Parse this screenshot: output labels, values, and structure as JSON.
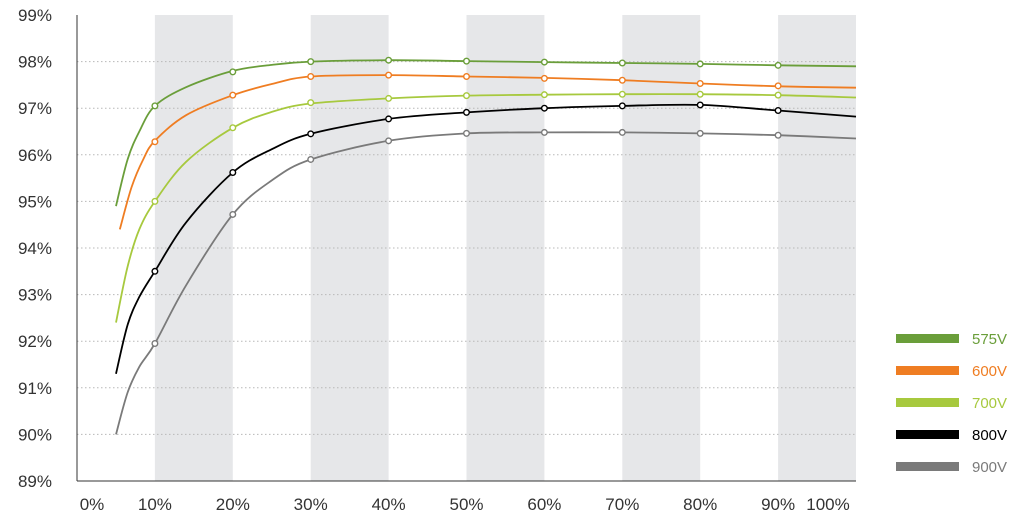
{
  "chart_data": {
    "type": "line",
    "title": "",
    "xlabel": "",
    "ylabel": "",
    "xlim": [
      0,
      100
    ],
    "ylim": [
      89,
      99
    ],
    "x_ticks": [
      "0%",
      "10%",
      "20%",
      "30%",
      "40%",
      "50%",
      "60%",
      "70%",
      "80%",
      "90%",
      "100%"
    ],
    "y_ticks": [
      "89%",
      "90%",
      "91%",
      "92%",
      "93%",
      "94%",
      "95%",
      "96%",
      "97%",
      "98%",
      "99%"
    ],
    "grid": "horizontal dotted lines with alternating shaded vertical bands",
    "legend_position": "bottom-right",
    "series": [
      {
        "name": "575V",
        "color": "#6a9e3a",
        "curve": [
          [
            5,
            94.9
          ],
          [
            6.5,
            95.9
          ],
          [
            8,
            96.5
          ],
          [
            10,
            97.05
          ],
          [
            14,
            97.45
          ],
          [
            20,
            97.8
          ],
          [
            25,
            97.93
          ],
          [
            30,
            98.0
          ],
          [
            40,
            98.03
          ],
          [
            50,
            98.01
          ],
          [
            60,
            97.99
          ],
          [
            70,
            97.97
          ],
          [
            80,
            97.95
          ],
          [
            90,
            97.92
          ],
          [
            100,
            97.9
          ]
        ],
        "markers": [
          [
            10,
            97.05
          ],
          [
            20,
            97.78
          ],
          [
            30,
            98.0
          ],
          [
            40,
            98.03
          ],
          [
            50,
            98.01
          ],
          [
            60,
            97.99
          ],
          [
            70,
            97.97
          ],
          [
            80,
            97.95
          ],
          [
            90,
            97.92
          ]
        ]
      },
      {
        "name": "600V",
        "color": "#ef7d22",
        "curve": [
          [
            5.5,
            94.4
          ],
          [
            7,
            95.3
          ],
          [
            8.5,
            95.9
          ],
          [
            10,
            96.3
          ],
          [
            14,
            96.85
          ],
          [
            20,
            97.28
          ],
          [
            25,
            97.52
          ],
          [
            30,
            97.68
          ],
          [
            40,
            97.71
          ],
          [
            50,
            97.68
          ],
          [
            60,
            97.65
          ],
          [
            70,
            97.6
          ],
          [
            80,
            97.53
          ],
          [
            90,
            97.47
          ],
          [
            100,
            97.44
          ]
        ],
        "markers": [
          [
            10,
            96.28
          ],
          [
            20,
            97.28
          ],
          [
            30,
            97.68
          ],
          [
            40,
            97.71
          ],
          [
            50,
            97.68
          ],
          [
            60,
            97.64
          ],
          [
            70,
            97.6
          ],
          [
            80,
            97.53
          ],
          [
            90,
            97.48
          ]
        ]
      },
      {
        "name": "700V",
        "color": "#a7c93e",
        "curve": [
          [
            5,
            92.4
          ],
          [
            6.5,
            93.6
          ],
          [
            8,
            94.4
          ],
          [
            10,
            95.0
          ],
          [
            14,
            95.85
          ],
          [
            20,
            96.58
          ],
          [
            25,
            96.92
          ],
          [
            30,
            97.1
          ],
          [
            40,
            97.21
          ],
          [
            50,
            97.27
          ],
          [
            60,
            97.29
          ],
          [
            70,
            97.3
          ],
          [
            80,
            97.3
          ],
          [
            90,
            97.28
          ],
          [
            100,
            97.23
          ]
        ],
        "markers": [
          [
            10,
            95.0
          ],
          [
            20,
            96.58
          ],
          [
            30,
            97.12
          ],
          [
            40,
            97.21
          ],
          [
            50,
            97.27
          ],
          [
            60,
            97.29
          ],
          [
            70,
            97.3
          ],
          [
            80,
            97.3
          ],
          [
            90,
            97.28
          ]
        ]
      },
      {
        "name": "800V",
        "color": "#000000",
        "curve": [
          [
            5,
            91.3
          ],
          [
            6.5,
            92.35
          ],
          [
            8,
            92.95
          ],
          [
            10,
            93.5
          ],
          [
            14,
            94.55
          ],
          [
            20,
            95.62
          ],
          [
            25,
            96.12
          ],
          [
            30,
            96.45
          ],
          [
            40,
            96.77
          ],
          [
            50,
            96.91
          ],
          [
            60,
            97.0
          ],
          [
            70,
            97.05
          ],
          [
            80,
            97.07
          ],
          [
            90,
            96.95
          ],
          [
            100,
            96.82
          ]
        ],
        "markers": [
          [
            10,
            93.5
          ],
          [
            20,
            95.62
          ],
          [
            30,
            96.45
          ],
          [
            40,
            96.77
          ],
          [
            50,
            96.91
          ],
          [
            60,
            97.0
          ],
          [
            70,
            97.05
          ],
          [
            80,
            97.07
          ],
          [
            90,
            96.95
          ]
        ]
      },
      {
        "name": "900V",
        "color": "#7a7a7a",
        "curve": [
          [
            5,
            90.0
          ],
          [
            6.5,
            90.9
          ],
          [
            8,
            91.45
          ],
          [
            10,
            91.95
          ],
          [
            14,
            93.2
          ],
          [
            20,
            94.72
          ],
          [
            25,
            95.45
          ],
          [
            30,
            95.9
          ],
          [
            40,
            96.3
          ],
          [
            50,
            96.46
          ],
          [
            60,
            96.48
          ],
          [
            70,
            96.48
          ],
          [
            80,
            96.46
          ],
          [
            90,
            96.42
          ],
          [
            100,
            96.35
          ]
        ],
        "markers": [
          [
            10,
            91.95
          ],
          [
            20,
            94.72
          ],
          [
            30,
            95.9
          ],
          [
            40,
            96.3
          ],
          [
            50,
            96.46
          ],
          [
            60,
            96.48
          ],
          [
            70,
            96.48
          ],
          [
            80,
            96.46
          ],
          [
            90,
            96.42
          ]
        ]
      }
    ]
  }
}
